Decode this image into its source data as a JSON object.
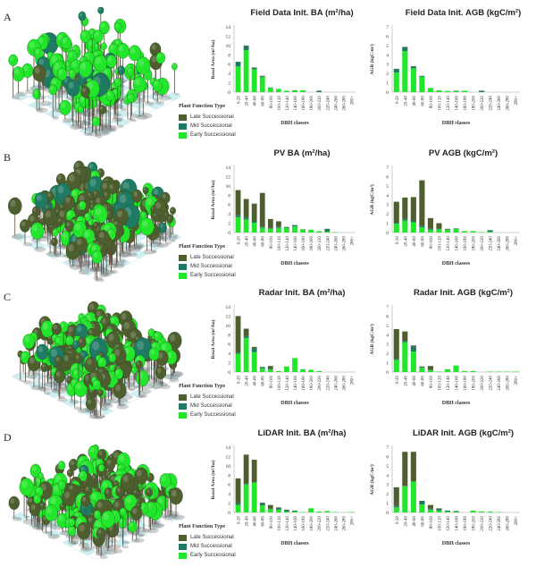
{
  "colors": {
    "late": "#4e5e2e",
    "mid": "#1e7a62",
    "early": "#22e62a",
    "axis": "#bfbfbf",
    "floor_a": "#cfeff0",
    "floor_b": "#ffffff"
  },
  "legend": {
    "title": "Plant Function Type",
    "items": [
      {
        "key": "late",
        "label": "Late Successional"
      },
      {
        "key": "mid",
        "label": "Mid Successional"
      },
      {
        "key": "early",
        "label": "Early Successional"
      }
    ]
  },
  "panels": [
    {
      "label": "A",
      "forest": {
        "tree_mix": {
          "early": 0.8,
          "mid": 0.1,
          "late": 0.1
        },
        "density": 130
      }
    },
    {
      "label": "B",
      "forest": {
        "tree_mix": {
          "early": 0.3,
          "mid": 0.1,
          "late": 0.6
        },
        "density": 220
      }
    },
    {
      "label": "C",
      "forest": {
        "tree_mix": {
          "early": 0.5,
          "mid": 0.05,
          "late": 0.45
        },
        "density": 240
      }
    },
    {
      "label": "D",
      "forest": {
        "tree_mix": {
          "early": 0.45,
          "mid": 0.05,
          "late": 0.5
        },
        "density": 230
      }
    }
  ],
  "chart_data": [
    {
      "type": "bar",
      "stacked": true,
      "panel": "A",
      "title": "Field Data Init. BA (m²/ha)",
      "xlabel": "DBH classes",
      "ylabel": "Basal Area (m²/ha)",
      "ylim": [
        0,
        14
      ],
      "yticks": [
        0,
        2,
        4,
        6,
        8,
        10,
        12,
        14
      ],
      "categories": [
        "0-20",
        "20-40",
        "40-60",
        "60-80",
        "80-100",
        "100-120",
        "120-140",
        "140-160",
        "160-180",
        "180-200",
        "200-220",
        "220-240",
        "240-260",
        "260-280",
        "280+"
      ],
      "series": [
        {
          "name": "Early Successional",
          "values": [
            5.5,
            9,
            4.9,
            3.2,
            0.9,
            0.7,
            0.3,
            0.3,
            0.4,
            0,
            0,
            0,
            0,
            0,
            0
          ]
        },
        {
          "name": "Mid Successional",
          "values": [
            1,
            0.9,
            0.3,
            0.2,
            0.1,
            0,
            0,
            0.1,
            0,
            0,
            0.3,
            0,
            0,
            0,
            0
          ]
        },
        {
          "name": "Late Successional",
          "values": [
            0,
            0.1,
            0.1,
            0.1,
            0,
            0,
            0,
            0,
            0,
            0,
            0,
            0,
            0,
            0,
            0
          ]
        }
      ]
    },
    {
      "type": "bar",
      "stacked": true,
      "panel": "A",
      "title": "Field Data Init. AGB (kgC/m²)",
      "xlabel": "DBH classes",
      "ylabel": "AGB (kgC/m²)",
      "ylim": [
        0,
        7
      ],
      "yticks": [
        0,
        1,
        2,
        3,
        4,
        5,
        6,
        7
      ],
      "categories": [
        "0-20",
        "20-40",
        "40-60",
        "60-80",
        "80-100",
        "100-120",
        "120-140",
        "140-160",
        "160-180",
        "180-200",
        "200-220",
        "220-240",
        "240-260",
        "260-280",
        "280+"
      ],
      "series": [
        {
          "name": "Early Successional",
          "values": [
            2.1,
            4.4,
            2.55,
            1.65,
            0.45,
            0.2,
            0.12,
            0.1,
            0.15,
            0,
            0,
            0,
            0,
            0,
            0
          ]
        },
        {
          "name": "Mid Successional",
          "values": [
            0.4,
            0.4,
            0.2,
            0.08,
            0,
            0,
            0,
            0.05,
            0,
            0,
            0.15,
            0,
            0,
            0,
            0
          ]
        },
        {
          "name": "Late Successional",
          "values": [
            0,
            0.05,
            0.03,
            0.02,
            0,
            0,
            0,
            0,
            0,
            0,
            0,
            0,
            0,
            0,
            0
          ]
        }
      ]
    },
    {
      "type": "bar",
      "stacked": true,
      "panel": "B",
      "title": "PV BA (m²/ha)",
      "xlabel": "DBH classes",
      "ylabel": "Basal Area (m²/ha)",
      "ylim": [
        0,
        14
      ],
      "yticks": [
        0,
        2,
        4,
        6,
        8,
        10,
        12,
        14
      ],
      "categories": [
        "0-20",
        "20-40",
        "40-60",
        "60-80",
        "80-100",
        "100-120",
        "120-140",
        "140-160",
        "160-180",
        "180-200",
        "200-220",
        "220-240",
        "240-260",
        "260-280",
        "280+"
      ],
      "series": [
        {
          "name": "Early Successional",
          "values": [
            3.3,
            2.8,
            2.1,
            1.0,
            0.8,
            1.0,
            1.0,
            1.3,
            0.6,
            0.6,
            0.3,
            0.2,
            0.1,
            0,
            0
          ]
        },
        {
          "name": "Mid Successional",
          "values": [
            0.4,
            0.4,
            0.3,
            0.2,
            0.1,
            0.2,
            0.2,
            0.3,
            0.1,
            0,
            0,
            0.6,
            0,
            0,
            0
          ]
        },
        {
          "name": "Late Successional",
          "values": [
            5.4,
            4,
            3.8,
            7.3,
            2,
            1.2,
            0,
            0,
            0,
            0,
            0,
            0,
            0,
            0,
            0
          ]
        }
      ]
    },
    {
      "type": "bar",
      "stacked": true,
      "panel": "B",
      "title": "PV AGB (kgC/m²)",
      "xlabel": "DBH classes",
      "ylabel": "AGB (kgC/m²)",
      "ylim": [
        0,
        7
      ],
      "yticks": [
        0,
        1,
        2,
        3,
        4,
        5,
        6,
        7
      ],
      "categories": [
        "0-20",
        "20-40",
        "40-60",
        "60-80",
        "80-100",
        "100-120",
        "120-140",
        "140-160",
        "160-180",
        "180-200",
        "200-220",
        "220-240",
        "240-260",
        "260-280",
        "280+"
      ],
      "series": [
        {
          "name": "Early Successional",
          "values": [
            0.95,
            1.3,
            1.1,
            0.55,
            0.3,
            0.35,
            0.3,
            0.4,
            0.15,
            0.15,
            0.05,
            0.1,
            0,
            0,
            0
          ]
        },
        {
          "name": "Mid Successional",
          "values": [
            0.1,
            0.15,
            0.15,
            0.15,
            0.1,
            0.05,
            0.05,
            0.05,
            0,
            0,
            0,
            0.15,
            0,
            0,
            0
          ]
        },
        {
          "name": "Late Successional",
          "values": [
            2.25,
            2.3,
            2.55,
            4.9,
            1.15,
            0.6,
            0.05,
            0,
            0,
            0,
            0,
            0,
            0,
            0,
            0
          ]
        }
      ]
    },
    {
      "type": "bar",
      "stacked": true,
      "panel": "C",
      "title": "Radar Init. BA (m²/ha)",
      "xlabel": "DBH classes",
      "ylabel": "Basal Area (m²/ha)",
      "ylim": [
        0,
        14
      ],
      "yticks": [
        0,
        2,
        4,
        6,
        8,
        10,
        12,
        14
      ],
      "categories": [
        "0-20",
        "20-40",
        "40-60",
        "60-80",
        "80-100",
        "100-120",
        "120-140",
        "140-160",
        "160-180",
        "180-200",
        "200-220",
        "220-240",
        "240-260",
        "260-280",
        "280+"
      ],
      "series": [
        {
          "name": "Early Successional",
          "values": [
            3.9,
            7.3,
            4.3,
            0.8,
            0.5,
            0.2,
            1.2,
            3.0,
            0.6,
            0.5,
            0.2,
            0,
            0,
            0,
            0
          ]
        },
        {
          "name": "Mid Successional",
          "values": [
            0.3,
            0.4,
            0.8,
            0.3,
            0.2,
            0,
            0,
            0,
            0,
            0,
            0,
            0,
            0,
            0,
            0
          ]
        },
        {
          "name": "Late Successional",
          "values": [
            7.8,
            1.6,
            0.3,
            0,
            0.6,
            0,
            0,
            0,
            0,
            0,
            0,
            0,
            0,
            0,
            0
          ]
        }
      ]
    },
    {
      "type": "bar",
      "stacked": true,
      "panel": "C",
      "title": "Radar Init. AGB (kgC/m²)",
      "xlabel": "DBH classes",
      "ylabel": "AGB (kgC/m²)",
      "ylim": [
        0,
        7
      ],
      "yticks": [
        0,
        1,
        2,
        3,
        4,
        5,
        6,
        7
      ],
      "categories": [
        "0-20",
        "20-40",
        "40-60",
        "60-80",
        "80-100",
        "100-120",
        "120-140",
        "140-160",
        "160-180",
        "180-200",
        "200-220",
        "220-240",
        "240-260",
        "260-280",
        "280+"
      ],
      "series": [
        {
          "name": "Early Successional",
          "values": [
            1.3,
            3.2,
            2.2,
            0.45,
            0.2,
            0.05,
            0.3,
            0.7,
            0.1,
            0.1,
            0,
            0.05,
            0.05,
            0.05,
            0.05
          ]
        },
        {
          "name": "Mid Successional",
          "values": [
            0.1,
            0.15,
            0.5,
            0.1,
            0.05,
            0,
            0,
            0,
            0,
            0,
            0,
            0,
            0,
            0,
            0
          ]
        },
        {
          "name": "Late Successional",
          "values": [
            3.2,
            1.0,
            0.15,
            0.05,
            0.4,
            0,
            0,
            0,
            0,
            0,
            0,
            0,
            0,
            0,
            0
          ]
        }
      ]
    },
    {
      "type": "bar",
      "stacked": true,
      "panel": "D",
      "title": "LiDAR Init. BA (m²/ha)",
      "xlabel": "DBH classes",
      "ylabel": "Basal Area (m²/ha)",
      "ylim": [
        0,
        14
      ],
      "yticks": [
        0,
        2,
        4,
        6,
        8,
        10,
        12,
        14
      ],
      "categories": [
        "0-20",
        "20-40",
        "40-60",
        "60-80",
        "80-100",
        "100-120",
        "120-140",
        "140-160",
        "160-180",
        "180-200",
        "200-220",
        "220-240",
        "240-260",
        "260-280",
        "280+"
      ],
      "series": [
        {
          "name": "Early Successional",
          "values": [
            1.6,
            6,
            6.4,
            1.5,
            0.7,
            0.6,
            0.2,
            0.2,
            0.1,
            0.9,
            0.2,
            0.3,
            0.1,
            0,
            0.1
          ]
        },
        {
          "name": "Mid Successional",
          "values": [
            0.4,
            0.2,
            0.1,
            0.5,
            0.1,
            0.4,
            0.3,
            0.2,
            0,
            0,
            0,
            0,
            0,
            0,
            0
          ]
        },
        {
          "name": "Late Successional",
          "values": [
            5.3,
            6.2,
            4.8,
            0.1,
            0.8,
            0.1,
            0.1,
            0,
            0,
            0,
            0,
            0,
            0,
            0,
            0
          ]
        }
      ]
    },
    {
      "type": "bar",
      "stacked": true,
      "panel": "D",
      "title": "LiDAR Init. AGB (kgC/m²)",
      "xlabel": "DBH classes",
      "ylabel": "AGB (kgC/m²)",
      "ylim": [
        0,
        7
      ],
      "yticks": [
        0,
        1,
        2,
        3,
        4,
        5,
        6,
        7
      ],
      "categories": [
        "0-20",
        "20-40",
        "40-60",
        "60-80",
        "80-100",
        "100-120",
        "120-140",
        "140-160",
        "160-180",
        "180-200",
        "200-220",
        "220-240",
        "240-260",
        "260-280",
        "280+"
      ],
      "series": [
        {
          "name": "Early Successional",
          "values": [
            0.55,
            2.8,
            3.3,
            0.85,
            0.3,
            0.2,
            0.1,
            0.05,
            0,
            0.2,
            0.1,
            0.1,
            0.05,
            0,
            0
          ]
        },
        {
          "name": "Mid Successional",
          "values": [
            0.15,
            0.05,
            0.05,
            0.35,
            0.1,
            0.2,
            0.1,
            0.1,
            0,
            0,
            0,
            0,
            0,
            0,
            0
          ]
        },
        {
          "name": "Late Successional",
          "values": [
            2,
            3.65,
            3.15,
            0.05,
            0.4,
            0.05,
            0,
            0,
            0,
            0,
            0,
            0,
            0,
            0,
            0
          ]
        }
      ]
    }
  ]
}
